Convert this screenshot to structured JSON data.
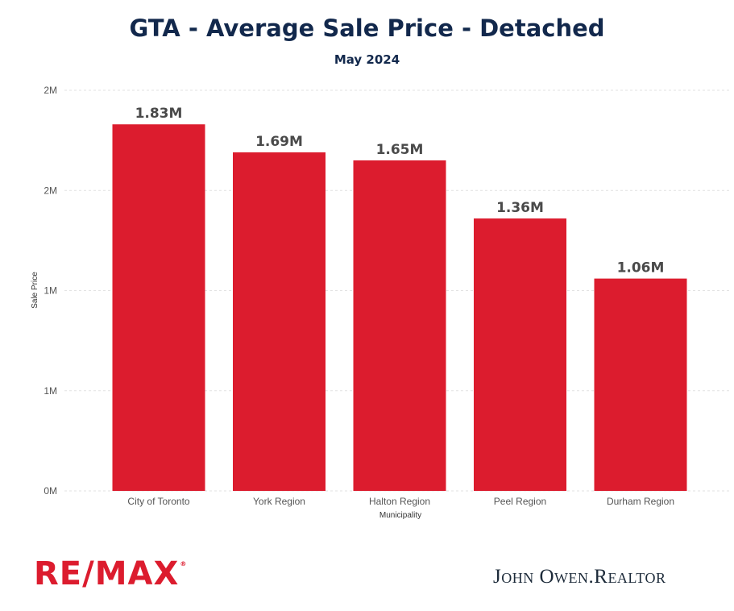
{
  "header": {
    "title": "GTA - Average Sale Price - Detached",
    "subtitle": "May 2024"
  },
  "footer": {
    "brand_logo": "RE/MAX",
    "brand_logo_mark": "®",
    "realtor": "John Owen.Realtor"
  },
  "colors": {
    "bar": "#dc1c2e",
    "title": "#12284c",
    "grid": "#e2e2e2",
    "axis_text": "#555555",
    "data_label": "#4a4a4a"
  },
  "chart_data": {
    "type": "bar",
    "title": "GTA - Average Sale Price - Detached",
    "subtitle": "May 2024",
    "xlabel": "Municipality",
    "ylabel": "Sale Price",
    "categories": [
      "City of Toronto",
      "York Region",
      "Halton Region",
      "Peel Region",
      "Durham Region"
    ],
    "values": [
      1.83,
      1.69,
      1.65,
      1.36,
      1.06
    ],
    "value_unit": "M",
    "data_labels": [
      "1.83M",
      "1.69M",
      "1.65M",
      "1.36M",
      "1.06M"
    ],
    "ylim": [
      0,
      2.0
    ],
    "yticks": [
      {
        "value": 0,
        "label": "0M"
      },
      {
        "value": 0.5,
        "label": "1M"
      },
      {
        "value": 1.0,
        "label": "1M"
      },
      {
        "value": 1.5,
        "label": "2M"
      },
      {
        "value": 2.0,
        "label": "2M"
      }
    ],
    "grid": true,
    "legend": "none"
  }
}
